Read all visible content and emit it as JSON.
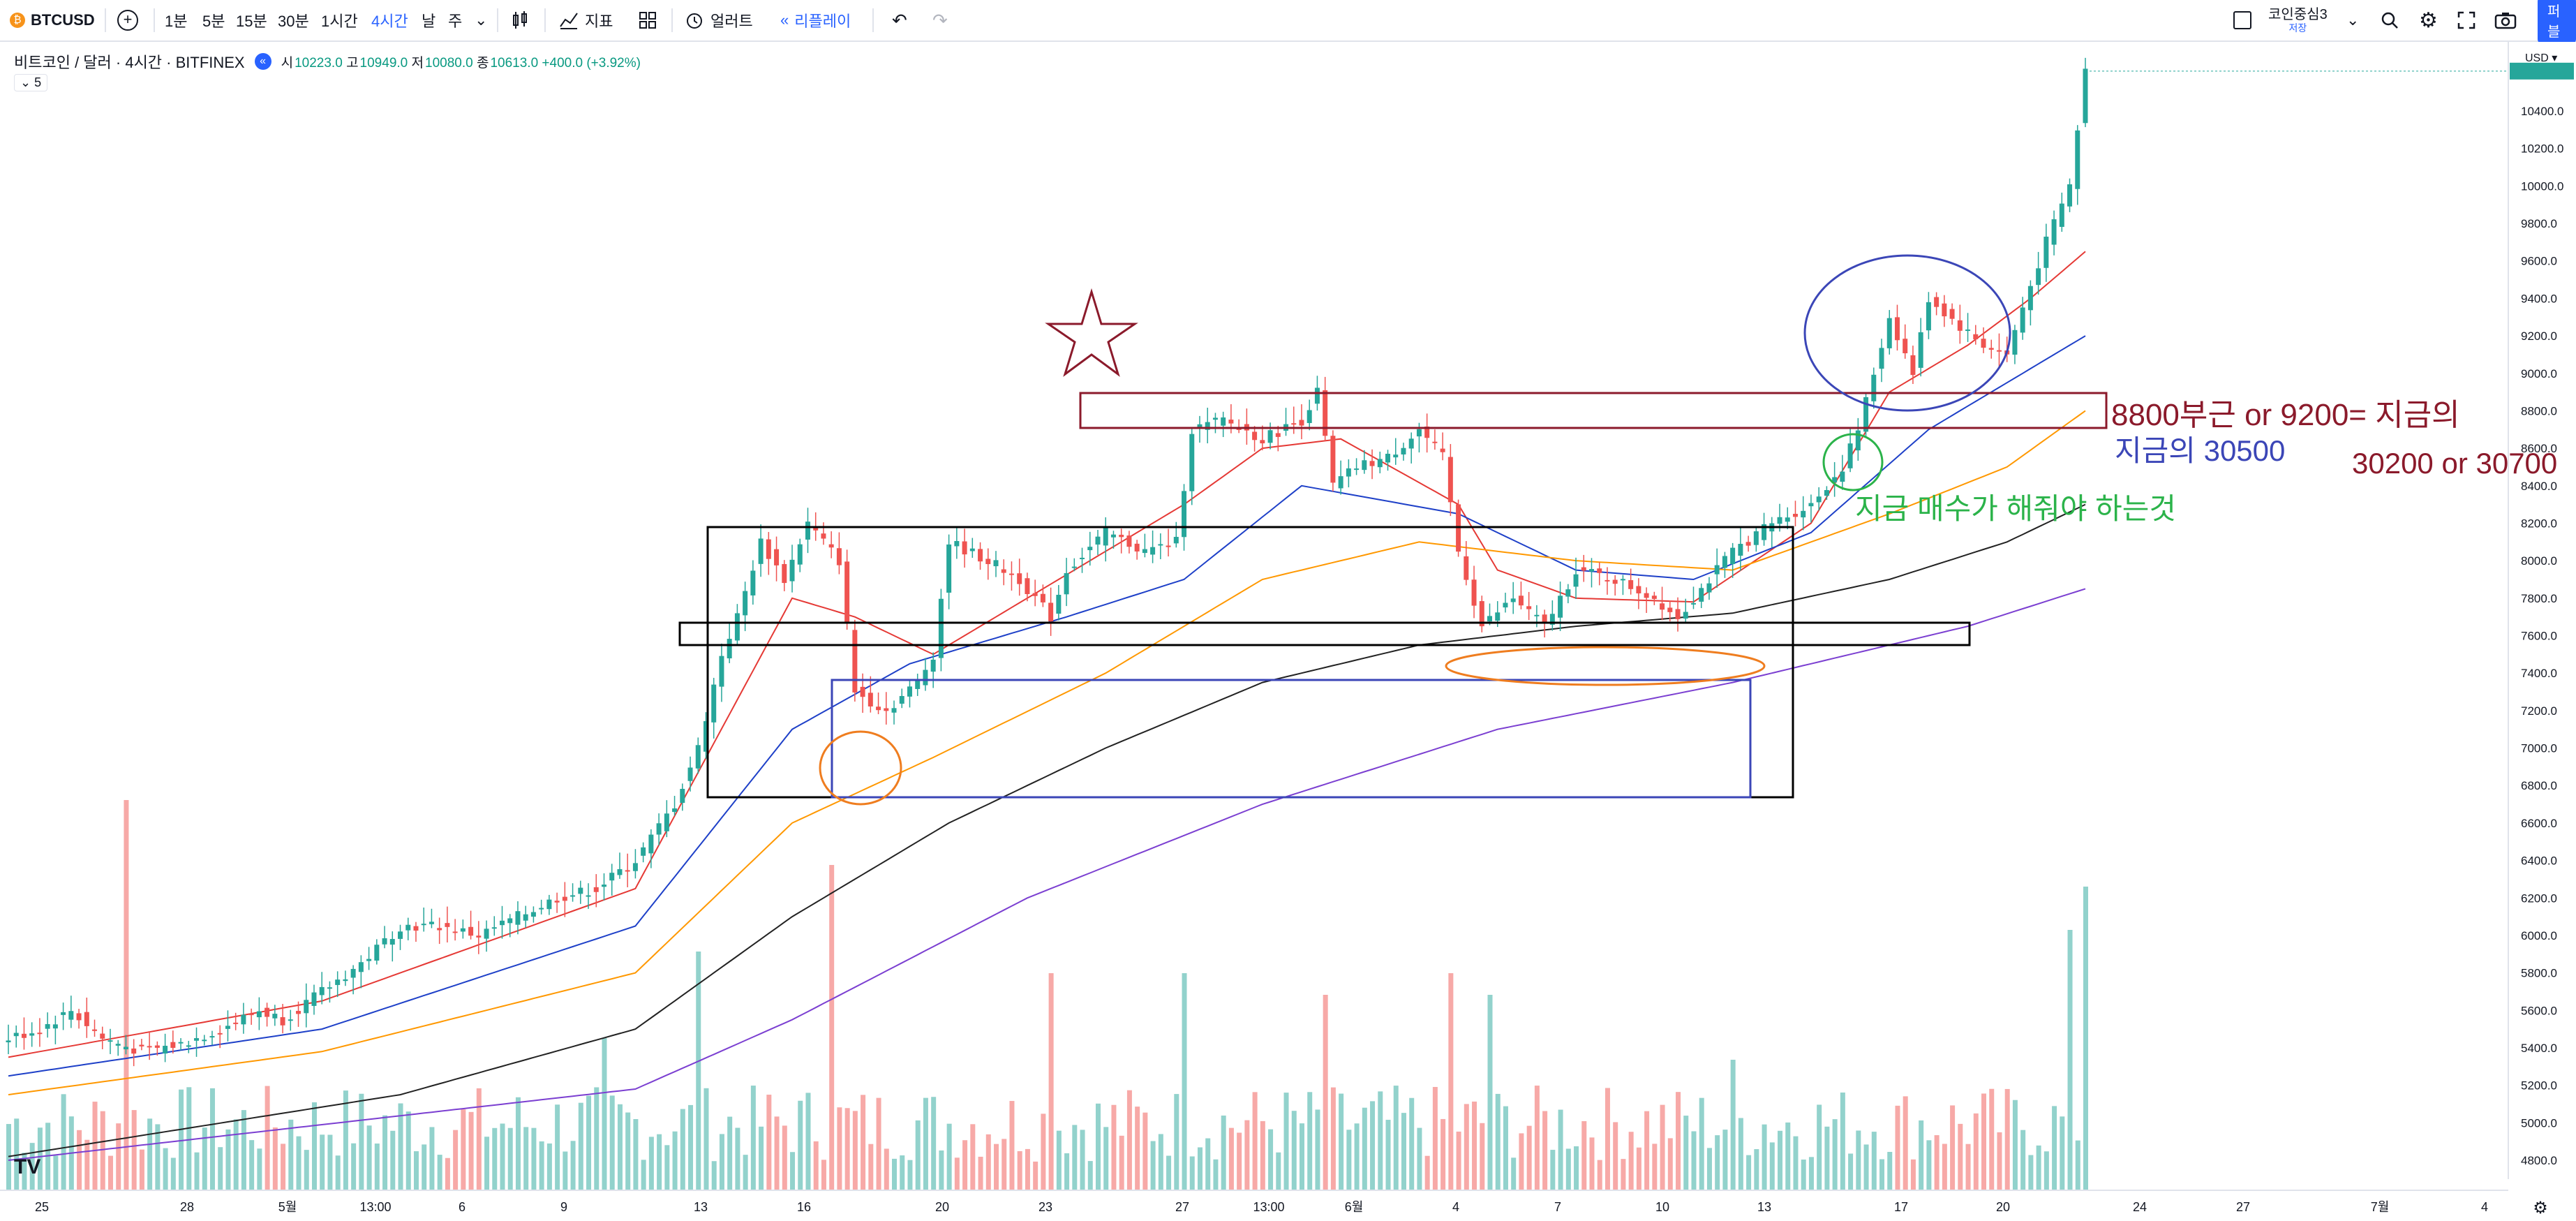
{
  "toolbar": {
    "symbol": "BTCUSD",
    "intervals": [
      "1분",
      "5분",
      "15분",
      "30분",
      "1시간",
      "4시간",
      "날",
      "주"
    ],
    "active_interval": "4시간",
    "indicators_label": "지표",
    "alert_label": "얼러트",
    "replay_label": "리플레이",
    "layout_name": "코인중심3",
    "layout_sub": "저장",
    "publish_label": "퍼블"
  },
  "legend": {
    "title": "비트코인 / 달러 · 4시간 · BITFINEX",
    "open_k": "시",
    "open": "10223.0",
    "high_k": "고",
    "high": "10949.0",
    "low_k": "저",
    "low": "10080.0",
    "close_k": "종",
    "close": "10613.0",
    "change": "+400.0 (+3.92%)",
    "collapse_count": "5"
  },
  "colors": {
    "up": "#26a69a",
    "down": "#ef5350",
    "ma_red": "#e53935",
    "ma_blue": "#1e40c8",
    "ma_orange": "#ff9800",
    "ma_black": "#222222",
    "ma_purple": "#7b3fd1",
    "accent": "#2962ff"
  },
  "annotations": {
    "text1": "8800부근 or 9200= 지금의",
    "text2": "지금의 30500",
    "text3": "30200 or 30700",
    "text4": "지금 매수가 해줘야 하는것"
  },
  "chart_data": {
    "type": "candlestick",
    "y_axis": {
      "currency": "USD",
      "ticks": [
        10400.0,
        10200.0,
        10000.0,
        9800.0,
        9600.0,
        9400.0,
        9200.0,
        9000.0,
        8800.0,
        8600.0,
        8400.0,
        8200.0,
        8000.0,
        7800.0,
        7600.0,
        7400.0,
        7200.0,
        7000.0,
        6800.0,
        6600.0,
        6400.0,
        6200.0,
        6000.0,
        5800.0,
        5600.0,
        5400.0,
        5200.0,
        5000.0,
        4800.0
      ],
      "range": [
        4800,
        10600
      ]
    },
    "x_axis": {
      "ticks": [
        "25",
        "28",
        "5월",
        "13:00",
        "6",
        "9",
        "13",
        "16",
        "20",
        "23",
        "27",
        "13:00",
        "6월",
        "4",
        "7",
        "10",
        "13",
        "17",
        "20",
        "24",
        "27",
        "7월",
        "4"
      ]
    },
    "price_path": [
      [
        0,
        5450
      ],
      [
        4,
        5500
      ],
      [
        8,
        5600
      ],
      [
        12,
        5450
      ],
      [
        17,
        5380
      ],
      [
        22,
        5420
      ],
      [
        27,
        5500
      ],
      [
        32,
        5600
      ],
      [
        35,
        5550
      ],
      [
        40,
        5700
      ],
      [
        45,
        5850
      ],
      [
        50,
        6050
      ],
      [
        55,
        6050
      ],
      [
        60,
        6000
      ],
      [
        65,
        6100
      ],
      [
        70,
        6200
      ],
      [
        75,
        6250
      ],
      [
        80,
        6400
      ],
      [
        85,
        6700
      ],
      [
        88,
        7000
      ],
      [
        91,
        7500
      ],
      [
        93,
        7700
      ],
      [
        96,
        8100
      ],
      [
        99,
        7900
      ],
      [
        102,
        8200
      ],
      [
        106,
        8000
      ],
      [
        108,
        7300
      ],
      [
        112,
        7200
      ],
      [
        116,
        7350
      ],
      [
        118,
        7500
      ],
      [
        120,
        8100
      ],
      [
        125,
        8000
      ],
      [
        129,
        7900
      ],
      [
        133,
        7700
      ],
      [
        135,
        7950
      ],
      [
        140,
        8150
      ],
      [
        145,
        8050
      ],
      [
        149,
        8100
      ],
      [
        151,
        8700
      ],
      [
        155,
        8750
      ],
      [
        160,
        8650
      ],
      [
        165,
        8750
      ],
      [
        167,
        8900
      ],
      [
        169,
        8400
      ],
      [
        172,
        8500
      ],
      [
        176,
        8550
      ],
      [
        180,
        8700
      ],
      [
        183,
        8550
      ],
      [
        185,
        8050
      ],
      [
        188,
        7650
      ],
      [
        192,
        7800
      ],
      [
        196,
        7650
      ],
      [
        200,
        7950
      ],
      [
        205,
        7900
      ],
      [
        210,
        7800
      ],
      [
        213,
        7700
      ],
      [
        216,
        7850
      ],
      [
        220,
        8050
      ],
      [
        225,
        8200
      ],
      [
        230,
        8300
      ],
      [
        234,
        8500
      ],
      [
        236,
        8700
      ],
      [
        240,
        9300
      ],
      [
        243,
        9000
      ],
      [
        245,
        9400
      ],
      [
        249,
        9250
      ],
      [
        252,
        9150
      ],
      [
        255,
        9100
      ],
      [
        257,
        9350
      ],
      [
        260,
        9700
      ],
      [
        263,
        10000
      ],
      [
        265,
        10613
      ]
    ],
    "moving_averages": [
      {
        "name": "MA-short",
        "path": [
          [
            0,
            5350
          ],
          [
            40,
            5650
          ],
          [
            80,
            6250
          ],
          [
            100,
            7800
          ],
          [
            108,
            7700
          ],
          [
            118,
            7500
          ],
          [
            130,
            7800
          ],
          [
            150,
            8300
          ],
          [
            160,
            8600
          ],
          [
            170,
            8650
          ],
          [
            185,
            8300
          ],
          [
            190,
            7950
          ],
          [
            200,
            7800
          ],
          [
            215,
            7780
          ],
          [
            230,
            8200
          ],
          [
            240,
            8900
          ],
          [
            250,
            9150
          ],
          [
            258,
            9400
          ],
          [
            265,
            9650
          ]
        ]
      },
      {
        "name": "MA-mid",
        "path": [
          [
            0,
            5250
          ],
          [
            40,
            5500
          ],
          [
            80,
            6050
          ],
          [
            100,
            7100
          ],
          [
            115,
            7450
          ],
          [
            135,
            7700
          ],
          [
            150,
            7900
          ],
          [
            165,
            8400
          ],
          [
            185,
            8250
          ],
          [
            200,
            7950
          ],
          [
            215,
            7900
          ],
          [
            230,
            8150
          ],
          [
            245,
            8700
          ],
          [
            255,
            8950
          ],
          [
            265,
            9200
          ]
        ]
      },
      {
        "name": "MA-long",
        "path": [
          [
            0,
            5150
          ],
          [
            40,
            5380
          ],
          [
            80,
            5800
          ],
          [
            100,
            6600
          ],
          [
            118,
            6950
          ],
          [
            140,
            7400
          ],
          [
            160,
            7900
          ],
          [
            180,
            8100
          ],
          [
            200,
            8000
          ],
          [
            220,
            7950
          ],
          [
            240,
            8250
          ],
          [
            255,
            8500
          ],
          [
            265,
            8800
          ]
        ]
      },
      {
        "name": "MA-200",
        "path": [
          [
            0,
            4820
          ],
          [
            50,
            5150
          ],
          [
            80,
            5500
          ],
          [
            100,
            6100
          ],
          [
            120,
            6600
          ],
          [
            140,
            7000
          ],
          [
            160,
            7350
          ],
          [
            180,
            7550
          ],
          [
            200,
            7650
          ],
          [
            220,
            7720
          ],
          [
            240,
            7900
          ],
          [
            255,
            8100
          ],
          [
            265,
            8300
          ]
        ]
      },
      {
        "name": "MA-400",
        "path": [
          [
            0,
            4800
          ],
          [
            80,
            5180
          ],
          [
            100,
            5550
          ],
          [
            130,
            6200
          ],
          [
            160,
            6700
          ],
          [
            190,
            7100
          ],
          [
            220,
            7350
          ],
          [
            250,
            7650
          ],
          [
            265,
            7850
          ]
        ]
      }
    ],
    "volume_spikes": [
      [
        15,
        0.9
      ],
      [
        76,
        0.35
      ],
      [
        88,
        0.55
      ],
      [
        105,
        0.75
      ],
      [
        133,
        0.5
      ],
      [
        150,
        0.5
      ],
      [
        168,
        0.45
      ],
      [
        184,
        0.5
      ],
      [
        189,
        0.45
      ],
      [
        220,
        0.3
      ],
      [
        263,
        0.6
      ],
      [
        265,
        0.7
      ]
    ]
  }
}
